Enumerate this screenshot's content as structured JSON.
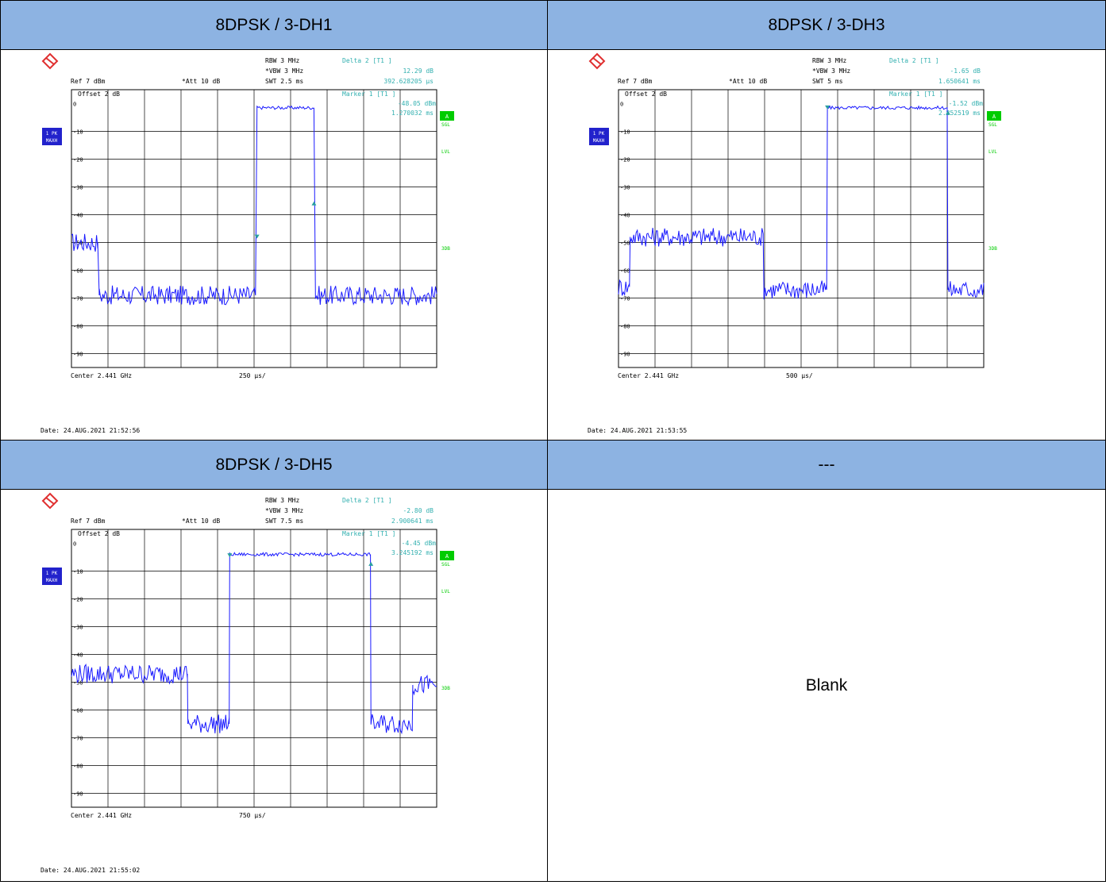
{
  "cells": [
    {
      "header": "8DPSK / 3-DH1"
    },
    {
      "header": "8DPSK / 3-DH3"
    },
    {
      "header": "8DPSK / 3-DH5"
    },
    {
      "header": "---",
      "body": "Blank"
    }
  ],
  "analyzer_labels": {
    "rbw": "RBW 3 MHz",
    "vbw": "VBW 3 MHz",
    "att": "Att  10 dB",
    "ref": "Ref  7 dBm",
    "offset": "Offset  2 dB",
    "trace_badge_1": "1 PK",
    "trace_badge_2": "MAXH",
    "badge_a": "A",
    "sgl": "SGL",
    "lvl": "LVL",
    "3db": "3DB"
  },
  "colors": {
    "header_bg": "#8db3e2",
    "trace": "#1a1aff",
    "marker": "#2aa0a0",
    "annotation": "#33b0b0",
    "grid": "#000000",
    "badge_green": "#00cc00",
    "badge_blue": "#2222cc"
  },
  "chart_data": [
    {
      "type": "line",
      "title": "8DPSK / 3-DH1",
      "xlabel": "Center 2.441 GHz",
      "xdiv": "250 µs/",
      "swt": "SWT 2.5 ms",
      "ylim": [
        -95,
        5
      ],
      "yticks": [
        "0",
        "-10",
        "-20",
        "-30",
        "-40",
        "-50",
        "-60",
        "-70",
        "-80",
        "-90"
      ],
      "x_ms": [
        0,
        0.18,
        0.19,
        1.26,
        1.27,
        1.66,
        1.67,
        2.5
      ],
      "y_dbm": [
        -50,
        -50,
        -69,
        -69,
        -1.5,
        -1.5,
        -69,
        -69
      ],
      "delta": {
        "label": "Delta 2 [T1 ]",
        "value": "12.29 dB",
        "time": "392.628205 µs"
      },
      "marker": {
        "label": "Marker 1 [T1 ]",
        "value": "-48.05 dBm",
        "time": "1.270032 ms"
      },
      "markers": [
        {
          "x_ms": 1.27,
          "y_dbm": -48.05
        },
        {
          "x_ms": 1.66,
          "y_dbm": -35.8
        }
      ],
      "date": "Date: 24.AUG.2021  21:52:56"
    },
    {
      "type": "line",
      "title": "8DPSK / 3-DH3",
      "xlabel": "Center 2.441 GHz",
      "xdiv": "500 µs/",
      "swt": "SWT 5 ms",
      "ylim": [
        -95,
        5
      ],
      "yticks": [
        "0",
        "-10",
        "-20",
        "-30",
        "-40",
        "-50",
        "-60",
        "-70",
        "-80",
        "-90"
      ],
      "x_ms": [
        0,
        0.15,
        0.16,
        1.98,
        1.99,
        2.85,
        2.86,
        4.5,
        4.51,
        5
      ],
      "y_dbm": [
        -66,
        -66,
        -48,
        -48,
        -67,
        -67,
        -1.5,
        -1.5,
        -67,
        -67
      ],
      "delta": {
        "label": "Delta 2 [T1 ]",
        "value": "-1.65 dB",
        "time": "1.650641 ms"
      },
      "marker": {
        "label": "Marker 1 [T1 ]",
        "value": "-1.52 dBm",
        "time": "2.852519 ms"
      },
      "markers": [
        {
          "x_ms": 2.86,
          "y_dbm": -1.52
        },
        {
          "x_ms": 4.51,
          "y_dbm": -3.17
        }
      ],
      "date": "Date: 24.AUG.2021  21:53:55"
    },
    {
      "type": "line",
      "title": "8DPSK / 3-DH5",
      "xlabel": "Center 2.441 GHz",
      "xdiv": "750 µs/",
      "swt": "SWT 7.5 ms",
      "ylim": [
        -95,
        5
      ],
      "yticks": [
        "0",
        "-10",
        "-20",
        "-30",
        "-40",
        "-50",
        "-60",
        "-70",
        "-80",
        "-90"
      ],
      "x_ms": [
        0,
        2.38,
        2.39,
        3.24,
        3.25,
        6.14,
        6.15,
        7.0,
        7.01,
        7.5
      ],
      "y_dbm": [
        -47,
        -47,
        -65,
        -65,
        -4,
        -4,
        -65,
        -65,
        -51,
        -51
      ],
      "delta": {
        "label": "Delta 2 [T1 ]",
        "value": "-2.80 dB",
        "time": "2.900641 ms"
      },
      "marker": {
        "label": "Marker 1 [T1 ]",
        "value": "-4.45 dBm",
        "time": "3.245192 ms"
      },
      "markers": [
        {
          "x_ms": 3.25,
          "y_dbm": -4.45
        },
        {
          "x_ms": 6.15,
          "y_dbm": -7.25
        }
      ],
      "date": "Date: 24.AUG.2021  21:55:02"
    }
  ]
}
